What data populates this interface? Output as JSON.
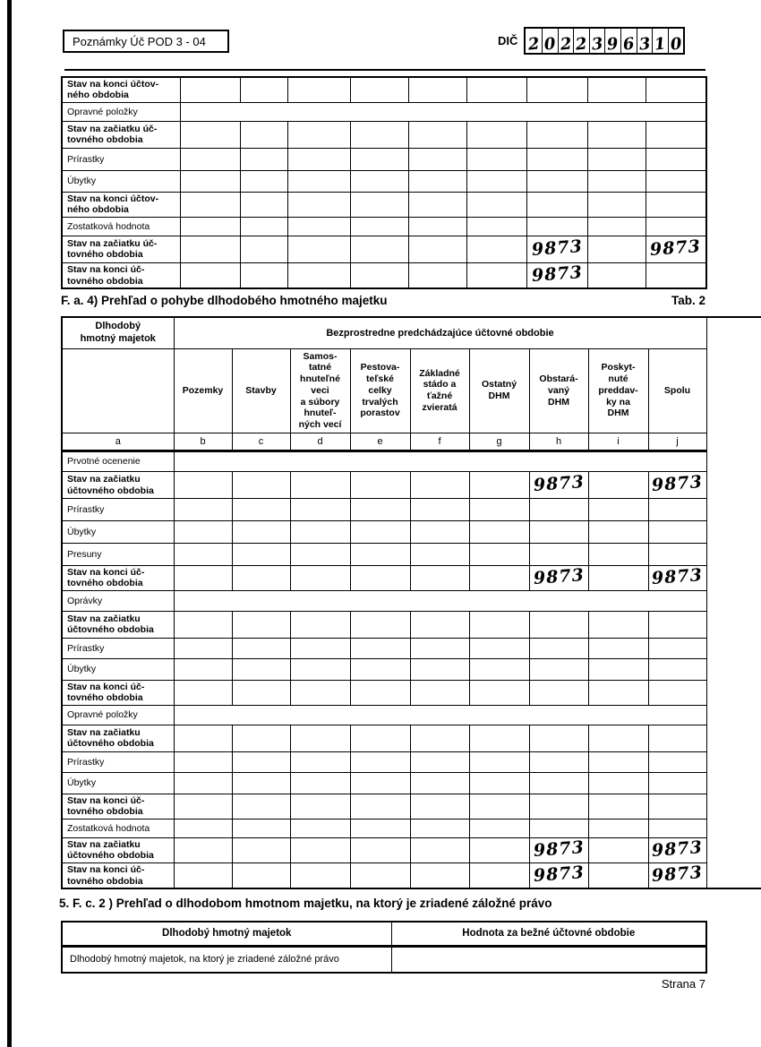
{
  "header": {
    "form_code": "Poznámky Úč POD 3 - 04",
    "dic_label": "DIČ",
    "dic_digits": [
      "2",
      "0",
      "2",
      "2",
      "3",
      "9",
      "6",
      "3",
      "1",
      "0"
    ]
  },
  "table1": {
    "rows": [
      {
        "label": "Stav na konci účtov-\nného obdobia",
        "bold": true
      },
      {
        "label": "Opravné položky",
        "merged": true
      },
      {
        "label": "Stav na začiatku úč-\ntovného obdobia",
        "bold": true
      },
      {
        "label": "Prírastky"
      },
      {
        "label": "Úbytky"
      },
      {
        "label": "Stav na konci účtov-\nného obdobia",
        "bold": true
      },
      {
        "label": "Zostatková hodnota"
      },
      {
        "label": "Stav na začiatku úč-\ntovného obdobia",
        "bold": true,
        "values": {
          "6": "9873",
          "8": "9873"
        }
      },
      {
        "label": "Stav na konci úč-\ntovného obdobia",
        "bold": true,
        "values": {
          "6": "9873"
        }
      }
    ]
  },
  "tab2": {
    "title": "F. a. 4) Prehľad o pohybe dlhodobého  hmotného majetku",
    "tab_label": "Tab. 2",
    "corner_header": "Dlhodobý\nhmotný majetok",
    "span_header": "Bezprostredne predchádzajúce účtovné obdobie",
    "column_headers": [
      "Pozemky",
      "Stavby",
      "Samos-\ntatné\nhnuteľné\nveci\na súbory\nhnuteľ-\nných vecí",
      "Pestova-\nteľské\ncelky\ntrvalých\nporastov",
      "Základné\nstádo a\nťažné\nzvieratá",
      "Ostatný\nDHM",
      "Obstará-\nvaný\nDHM",
      "Poskyt-\nnuté\npreddav-\nky na\nDHM",
      "Spolu"
    ],
    "column_letters": [
      "a",
      "b",
      "c",
      "d",
      "e",
      "f",
      "g",
      "h",
      "i",
      "j"
    ],
    "rows": [
      {
        "label": "Prvotné ocenenie",
        "merged": true
      },
      {
        "label": "Stav na začiatku\núčtovného obdobia",
        "bold": true,
        "values": {
          "6": "9873",
          "8": "9873"
        }
      },
      {
        "label": "Prírastky"
      },
      {
        "label": "Úbytky"
      },
      {
        "label": "Presuny"
      },
      {
        "label": "Stav na konci úč-\ntovného obdobia",
        "bold": true,
        "values": {
          "6": "9873",
          "8": "9873"
        }
      },
      {
        "label": "Oprávky",
        "merged": true
      },
      {
        "label": "Stav na začiatku\núčtovného obdobia",
        "bold": true
      },
      {
        "label": "Prírastky"
      },
      {
        "label": "Úbytky"
      },
      {
        "label": "Stav na konci úč-\ntovného obdobia",
        "bold": true
      },
      {
        "label": "Opravné položky",
        "merged": true
      },
      {
        "label": "Stav na začiatku\núčtovného obdobia",
        "bold": true
      },
      {
        "label": "Prírastky"
      },
      {
        "label": "Úbytky"
      },
      {
        "label": "Stav na konci úč-\ntovného obdobia",
        "bold": true
      },
      {
        "label": "Zostatková hodnota"
      },
      {
        "label": "Stav na začiatku\núčtovného obdobia",
        "bold": true,
        "values": {
          "6": "9873",
          "8": "9873"
        }
      },
      {
        "label": "Stav na konci úč-\ntovného obdobia",
        "bold": true,
        "values": {
          "6": "9873",
          "8": "9873"
        }
      }
    ]
  },
  "sec2": {
    "title": "5. F. c. 2 ) Prehľad o dlhodobom  hmotnom majetku, na ktorý je zriadené záložné  právo",
    "col1_header": "Dlhodobý hmotný majetok",
    "col2_header": "Hodnota za bežné účtovné obdobie",
    "row_label": "Dlhodobý hmotný majetok, na ktorý je zriadené záložné právo",
    "row_value": ""
  },
  "footer": {
    "page_label": "Strana 7"
  }
}
